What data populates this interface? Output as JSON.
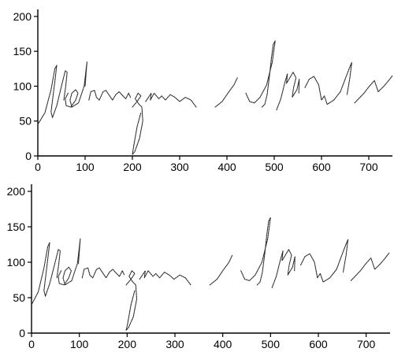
{
  "chart_data": [
    {
      "type": "line",
      "title": "",
      "xlabel": "",
      "ylabel": "",
      "xlim": [
        0,
        750
      ],
      "ylim": [
        0,
        210
      ],
      "x_ticks": [
        0,
        100,
        200,
        300,
        400,
        500,
        600,
        700
      ],
      "y_ticks": [
        0,
        50,
        100,
        150,
        200
      ],
      "grid": false,
      "series": [
        {
          "points": [
            [
              0,
              45
            ],
            [
              15,
              62
            ],
            [
              28,
              95
            ],
            [
              36,
              125
            ],
            [
              40,
              130
            ],
            [
              37,
              112
            ],
            [
              32,
              85
            ],
            [
              28,
              63
            ],
            [
              31,
              55
            ],
            [
              40,
              72
            ],
            [
              50,
              100
            ],
            [
              58,
              122
            ],
            [
              62,
              120
            ],
            [
              59,
              100
            ],
            [
              55,
              80
            ]
          ]
        },
        {
          "points": [
            [
              64,
              90
            ],
            [
              58,
              82
            ],
            [
              60,
              72
            ],
            [
              70,
              70
            ],
            [
              80,
              80
            ],
            [
              85,
              90
            ],
            [
              80,
              95
            ],
            [
              72,
              90
            ],
            [
              68,
              80
            ],
            [
              72,
              70
            ],
            [
              86,
              76
            ],
            [
              98,
              100
            ],
            [
              104,
              135
            ],
            [
              100,
              100
            ]
          ]
        },
        {
          "points": [
            [
              108,
              80
            ],
            [
              112,
              92
            ],
            [
              120,
              94
            ],
            [
              124,
              84
            ],
            [
              130,
              80
            ],
            [
              138,
              92
            ],
            [
              144,
              94
            ],
            [
              152,
              86
            ],
            [
              158,
              80
            ],
            [
              165,
              88
            ],
            [
              172,
              92
            ],
            [
              180,
              86
            ],
            [
              186,
              82
            ],
            [
              192,
              90
            ],
            [
              196,
              84
            ]
          ]
        },
        {
          "points": [
            [
              200,
              70
            ],
            [
              210,
              78
            ],
            [
              218,
              86
            ],
            [
              212,
              90
            ],
            [
              206,
              82
            ],
            [
              214,
              74
            ],
            [
              220,
              70
            ],
            [
              222,
              50
            ],
            [
              215,
              25
            ],
            [
              205,
              6
            ],
            [
              200,
              2
            ],
            [
              203,
              15
            ],
            [
              210,
              42
            ],
            [
              218,
              62
            ]
          ]
        },
        {
          "points": [
            [
              228,
              78
            ],
            [
              236,
              86
            ],
            [
              240,
              90
            ],
            [
              238,
              80
            ],
            [
              246,
              90
            ],
            [
              256,
              82
            ],
            [
              262,
              86
            ],
            [
              270,
              80
            ],
            [
              280,
              88
            ],
            [
              290,
              84
            ],
            [
              300,
              78
            ],
            [
              312,
              84
            ],
            [
              324,
              80
            ],
            [
              335,
              70
            ]
          ]
        },
        {
          "points": [
            [
              375,
              70
            ],
            [
              390,
              78
            ],
            [
              402,
              90
            ],
            [
              415,
              102
            ],
            [
              422,
              112
            ]
          ]
        },
        {
          "points": [
            [
              440,
              90
            ],
            [
              448,
              78
            ],
            [
              458,
              76
            ],
            [
              470,
              84
            ],
            [
              484,
              102
            ],
            [
              496,
              135
            ],
            [
              502,
              165
            ],
            [
              498,
              160
            ],
            [
              494,
              140
            ],
            [
              490,
              115
            ],
            [
              485,
              88
            ],
            [
              480,
              74
            ],
            [
              474,
              70
            ]
          ]
        },
        {
          "points": [
            [
              505,
              66
            ],
            [
              514,
              82
            ],
            [
              522,
              104
            ],
            [
              528,
              118
            ],
            [
              526,
              104
            ],
            [
              540,
              120
            ],
            [
              546,
              112
            ],
            [
              541,
              98
            ],
            [
              538,
              84
            ],
            [
              548,
              95
            ],
            [
              553,
              110
            ],
            [
              552,
              90
            ]
          ]
        },
        {
          "points": [
            [
              565,
              98
            ],
            [
              574,
              110
            ],
            [
              584,
              114
            ],
            [
              594,
              102
            ],
            [
              600,
              80
            ],
            [
              606,
              86
            ],
            [
              612,
              74
            ],
            [
              626,
              80
            ],
            [
              640,
              92
            ],
            [
              650,
              110
            ],
            [
              659,
              126
            ],
            [
              664,
              134
            ],
            [
              660,
              112
            ],
            [
              654,
              88
            ]
          ]
        },
        {
          "points": [
            [
              670,
              76
            ],
            [
              690,
              90
            ],
            [
              700,
              99
            ],
            [
              712,
              108
            ],
            [
              720,
              92
            ],
            [
              732,
              100
            ],
            [
              742,
              108
            ],
            [
              750,
              115
            ]
          ]
        }
      ]
    },
    {
      "type": "line",
      "title": "",
      "xlabel": "",
      "ylabel": "",
      "xlim": [
        0,
        750
      ],
      "ylim": [
        0,
        210
      ],
      "x_ticks": [
        0,
        100,
        200,
        300,
        400,
        500,
        600,
        700
      ],
      "y_ticks": [
        0,
        50,
        100,
        150,
        200
      ],
      "grid": false,
      "series": [
        {
          "points": [
            [
              0,
              40
            ],
            [
              14,
              58
            ],
            [
              26,
              92
            ],
            [
              34,
              122
            ],
            [
              38,
              128
            ],
            [
              35,
              110
            ],
            [
              30,
              82
            ],
            [
              26,
              60
            ],
            [
              29,
              52
            ],
            [
              38,
              70
            ],
            [
              48,
              96
            ],
            [
              56,
              118
            ],
            [
              60,
              116
            ],
            [
              57,
              98
            ],
            [
              53,
              78
            ]
          ]
        },
        {
          "points": [
            [
              62,
              88
            ],
            [
              56,
              80
            ],
            [
              58,
              70
            ],
            [
              68,
              68
            ],
            [
              78,
              78
            ],
            [
              83,
              88
            ],
            [
              78,
              93
            ],
            [
              70,
              88
            ],
            [
              66,
              78
            ],
            [
              70,
              68
            ],
            [
              84,
              74
            ],
            [
              96,
              98
            ],
            [
              102,
              133
            ],
            [
              98,
              98
            ]
          ]
        },
        {
          "points": [
            [
              106,
              78
            ],
            [
              110,
              90
            ],
            [
              118,
              92
            ],
            [
              122,
              82
            ],
            [
              128,
              78
            ],
            [
              136,
              90
            ],
            [
              142,
              92
            ],
            [
              150,
              84
            ],
            [
              156,
              78
            ],
            [
              163,
              86
            ],
            [
              170,
              90
            ],
            [
              178,
              84
            ],
            [
              184,
              80
            ],
            [
              190,
              88
            ],
            [
              194,
              82
            ]
          ]
        },
        {
          "points": [
            [
              198,
              68
            ],
            [
              208,
              76
            ],
            [
              216,
              84
            ],
            [
              210,
              88
            ],
            [
              204,
              80
            ],
            [
              212,
              72
            ],
            [
              218,
              68
            ],
            [
              220,
              48
            ],
            [
              213,
              23
            ],
            [
              203,
              8
            ],
            [
              198,
              4
            ],
            [
              201,
              13
            ],
            [
              208,
              40
            ],
            [
              216,
              60
            ]
          ]
        },
        {
          "points": [
            [
              226,
              76
            ],
            [
              234,
              84
            ],
            [
              238,
              88
            ],
            [
              236,
              78
            ],
            [
              244,
              88
            ],
            [
              254,
              80
            ],
            [
              260,
              84
            ],
            [
              268,
              78
            ],
            [
              278,
              86
            ],
            [
              288,
              82
            ],
            [
              298,
              76
            ],
            [
              310,
              82
            ],
            [
              322,
              78
            ],
            [
              333,
              68
            ]
          ]
        },
        {
          "points": [
            [
              373,
              68
            ],
            [
              388,
              76
            ],
            [
              400,
              88
            ],
            [
              413,
              100
            ],
            [
              420,
              110
            ]
          ]
        },
        {
          "points": [
            [
              438,
              88
            ],
            [
              446,
              76
            ],
            [
              456,
              74
            ],
            [
              468,
              82
            ],
            [
              482,
              100
            ],
            [
              494,
              133
            ],
            [
              500,
              163
            ],
            [
              496,
              158
            ],
            [
              492,
              138
            ],
            [
              488,
              113
            ],
            [
              483,
              86
            ],
            [
              478,
              72
            ],
            [
              472,
              68
            ]
          ]
        },
        {
          "points": [
            [
              503,
              64
            ],
            [
              512,
              80
            ],
            [
              520,
              102
            ],
            [
              526,
              116
            ],
            [
              524,
              102
            ],
            [
              538,
              118
            ],
            [
              544,
              110
            ],
            [
              539,
              96
            ],
            [
              536,
              82
            ],
            [
              546,
              93
            ],
            [
              551,
              108
            ],
            [
              550,
              88
            ]
          ]
        },
        {
          "points": [
            [
              563,
              96
            ],
            [
              572,
              108
            ],
            [
              582,
              112
            ],
            [
              592,
              100
            ],
            [
              598,
              78
            ],
            [
              604,
              84
            ],
            [
              610,
              72
            ],
            [
              624,
              78
            ],
            [
              638,
              90
            ],
            [
              648,
              108
            ],
            [
              657,
              124
            ],
            [
              662,
              132
            ],
            [
              658,
              110
            ],
            [
              652,
              86
            ]
          ]
        },
        {
          "points": [
            [
              668,
              74
            ],
            [
              688,
              88
            ],
            [
              698,
              97
            ],
            [
              710,
              106
            ],
            [
              718,
              90
            ],
            [
              730,
              98
            ],
            [
              740,
              106
            ],
            [
              748,
              113
            ]
          ]
        }
      ]
    }
  ]
}
